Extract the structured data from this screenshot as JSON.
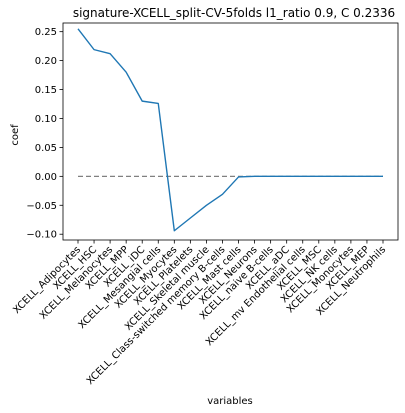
{
  "chart_data": {
    "type": "line",
    "title": "signature-XCELL_split-CV-5folds l1_ratio 0.9, C 0.2336",
    "xlabel": "variables",
    "ylabel": "coef",
    "ylim": [
      -0.11,
      0.265
    ],
    "yticks": [
      0.25,
      0.2,
      0.15,
      0.1,
      0.05,
      0.0,
      -0.05,
      -0.1
    ],
    "ytick_labels": [
      "0.25",
      "0.20",
      "0.15",
      "0.10",
      "0.05",
      "0.00",
      "−0.05",
      "−0.10"
    ],
    "grid": false,
    "x_labels": [
      "XCELL_Adipocytes",
      "XCELL_HSC",
      "XCELL_Melanocytes",
      "XCELL_MPP",
      "XCELL_iDC",
      "XCELL_Mesangial cells",
      "XCELL_Myocytes",
      "XCELL_Platelets",
      "XCELL_Skeletal muscle",
      "XCELL_Class-switched memory B-cells",
      "XCELL_Mast cells",
      "XCELL_Neurons",
      "XCELL_naive B-cells",
      "XCELL_aDC",
      "XCELL_mv Endothelial cells",
      "XCELL_MSC",
      "XCELL_NK cells",
      "XCELL_Monocytes",
      "XCELL_MEP",
      "XCELL_Neutrophils"
    ],
    "series": [
      {
        "values": [
          0.255,
          0.219,
          0.212,
          0.18,
          0.13,
          0.126,
          -0.094,
          -0.072,
          -0.05,
          -0.031,
          -0.001,
          0.0,
          0.0,
          0.0,
          0.0,
          0.0,
          0.0,
          0.0,
          0.0,
          0.0
        ],
        "color": "#1f77b4"
      }
    ],
    "reference_line": {
      "y": 0.0,
      "style": "dashed",
      "color": "#808080"
    }
  }
}
